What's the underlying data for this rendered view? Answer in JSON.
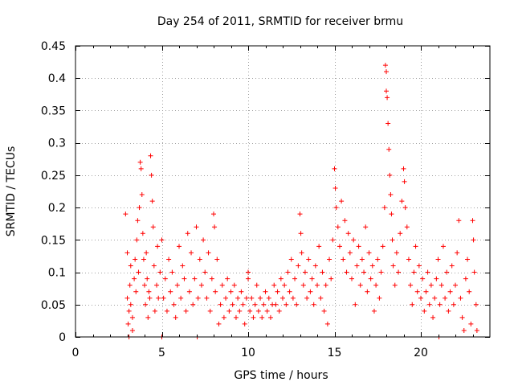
{
  "chart_data": {
    "type": "scatter",
    "title": "Day 254 of 2011, SRMTID for receiver brmu",
    "xlabel": "GPS time / hours",
    "ylabel": "SRMTID / TECUs",
    "xlim": [
      0,
      24
    ],
    "ylim": [
      0,
      0.45
    ],
    "grid": true,
    "marker": "+",
    "marker_color": "#ff0000",
    "xticks": [
      0,
      5,
      10,
      15,
      20
    ],
    "xtick_labels": [
      "0",
      "5",
      "10",
      "15",
      "20"
    ],
    "yticks": [
      0,
      0.05,
      0.1,
      0.15,
      0.2,
      0.25,
      0.3,
      0.35,
      0.4,
      0.45
    ],
    "ytick_labels": [
      "0",
      "0.05",
      "0.1",
      "0.15",
      "0.2",
      "0.25",
      "0.3",
      "0.35",
      "0.4",
      "0.45"
    ],
    "series": [
      {
        "name": "SRMTID",
        "points": [
          [
            2.9,
            0.19
          ],
          [
            3.0,
            0.13
          ],
          [
            3.0,
            0.06
          ],
          [
            3.05,
            0.02
          ],
          [
            3.1,
            0.04
          ],
          [
            3.1,
            0.0
          ],
          [
            3.15,
            0.08
          ],
          [
            3.2,
            0.05
          ],
          [
            3.2,
            0.11
          ],
          [
            3.3,
            0.03
          ],
          [
            3.3,
            0.01
          ],
          [
            3.4,
            0.09
          ],
          [
            3.45,
            0.12
          ],
          [
            3.5,
            0.07
          ],
          [
            3.55,
            0.15
          ],
          [
            3.6,
            0.18
          ],
          [
            3.65,
            0.1
          ],
          [
            3.7,
            0.2
          ],
          [
            3.75,
            0.27
          ],
          [
            3.8,
            0.26
          ],
          [
            3.85,
            0.22
          ],
          [
            3.9,
            0.16
          ],
          [
            3.95,
            0.12
          ],
          [
            4.0,
            0.08
          ],
          [
            4.05,
            0.05
          ],
          [
            4.1,
            0.13
          ],
          [
            4.15,
            0.09
          ],
          [
            4.2,
            0.03
          ],
          [
            4.25,
            0.07
          ],
          [
            4.3,
            0.06
          ],
          [
            4.35,
            0.28
          ],
          [
            4.4,
            0.25
          ],
          [
            4.45,
            0.21
          ],
          [
            4.5,
            0.17
          ],
          [
            4.55,
            0.11
          ],
          [
            4.6,
            0.04
          ],
          [
            4.7,
            0.08
          ],
          [
            4.75,
            0.14
          ],
          [
            4.8,
            0.06
          ],
          [
            4.9,
            0.1
          ],
          [
            5.0,
            0.15
          ],
          [
            5.0,
            0.0
          ],
          [
            5.1,
            0.06
          ],
          [
            5.2,
            0.09
          ],
          [
            5.3,
            0.04
          ],
          [
            5.4,
            0.12
          ],
          [
            5.5,
            0.07
          ],
          [
            5.6,
            0.1
          ],
          [
            5.7,
            0.05
          ],
          [
            5.8,
            0.03
          ],
          [
            5.9,
            0.08
          ],
          [
            6.0,
            0.14
          ],
          [
            6.1,
            0.06
          ],
          [
            6.2,
            0.11
          ],
          [
            6.3,
            0.09
          ],
          [
            6.4,
            0.04
          ],
          [
            6.5,
            0.16
          ],
          [
            6.6,
            0.07
          ],
          [
            6.7,
            0.13
          ],
          [
            6.8,
            0.05
          ],
          [
            6.9,
            0.09
          ],
          [
            7.0,
            0.17
          ],
          [
            7.05,
            0.0
          ],
          [
            7.1,
            0.06
          ],
          [
            7.2,
            0.12
          ],
          [
            7.3,
            0.08
          ],
          [
            7.4,
            0.15
          ],
          [
            7.5,
            0.1
          ],
          [
            7.6,
            0.06
          ],
          [
            7.7,
            0.13
          ],
          [
            7.8,
            0.04
          ],
          [
            7.9,
            0.09
          ],
          [
            8.0,
            0.19
          ],
          [
            8.05,
            0.17
          ],
          [
            8.1,
            0.07
          ],
          [
            8.2,
            0.12
          ],
          [
            8.3,
            0.02
          ],
          [
            8.4,
            0.05
          ],
          [
            8.5,
            0.08
          ],
          [
            8.6,
            0.03
          ],
          [
            8.7,
            0.06
          ],
          [
            8.8,
            0.09
          ],
          [
            8.9,
            0.04
          ],
          [
            9.0,
            0.07
          ],
          [
            9.1,
            0.05
          ],
          [
            9.2,
            0.08
          ],
          [
            9.3,
            0.03
          ],
          [
            9.4,
            0.06
          ],
          [
            9.5,
            0.04
          ],
          [
            9.6,
            0.07
          ],
          [
            9.7,
            0.05
          ],
          [
            9.8,
            0.02
          ],
          [
            9.9,
            0.06
          ],
          [
            10.0,
            0.09
          ],
          [
            10.0,
            0.1
          ],
          [
            10.1,
            0.04
          ],
          [
            10.2,
            0.06
          ],
          [
            10.3,
            0.03
          ],
          [
            10.4,
            0.05
          ],
          [
            10.5,
            0.08
          ],
          [
            10.6,
            0.04
          ],
          [
            10.7,
            0.06
          ],
          [
            10.8,
            0.03
          ],
          [
            10.9,
            0.05
          ],
          [
            11.0,
            0.07
          ],
          [
            11.1,
            0.04
          ],
          [
            11.2,
            0.06
          ],
          [
            11.3,
            0.03
          ],
          [
            11.4,
            0.05
          ],
          [
            11.5,
            0.08
          ],
          [
            11.6,
            0.05
          ],
          [
            11.7,
            0.07
          ],
          [
            11.8,
            0.04
          ],
          [
            11.9,
            0.09
          ],
          [
            12.0,
            0.06
          ],
          [
            12.1,
            0.08
          ],
          [
            12.2,
            0.05
          ],
          [
            12.3,
            0.1
          ],
          [
            12.4,
            0.07
          ],
          [
            12.5,
            0.12
          ],
          [
            12.6,
            0.06
          ],
          [
            12.7,
            0.09
          ],
          [
            12.8,
            0.05
          ],
          [
            12.9,
            0.11
          ],
          [
            13.0,
            0.19
          ],
          [
            13.05,
            0.16
          ],
          [
            13.1,
            0.13
          ],
          [
            13.2,
            0.08
          ],
          [
            13.3,
            0.1
          ],
          [
            13.4,
            0.06
          ],
          [
            13.5,
            0.12
          ],
          [
            13.6,
            0.07
          ],
          [
            13.7,
            0.09
          ],
          [
            13.8,
            0.05
          ],
          [
            13.9,
            0.11
          ],
          [
            14.0,
            0.08
          ],
          [
            14.1,
            0.14
          ],
          [
            14.2,
            0.06
          ],
          [
            14.3,
            0.1
          ],
          [
            14.4,
            0.04
          ],
          [
            14.5,
            0.08
          ],
          [
            14.6,
            0.02
          ],
          [
            14.7,
            0.12
          ],
          [
            14.8,
            0.09
          ],
          [
            14.9,
            0.15
          ],
          [
            15.0,
            0.26
          ],
          [
            15.05,
            0.23
          ],
          [
            15.1,
            0.2
          ],
          [
            15.2,
            0.17
          ],
          [
            15.3,
            0.14
          ],
          [
            15.4,
            0.21
          ],
          [
            15.5,
            0.12
          ],
          [
            15.6,
            0.18
          ],
          [
            15.7,
            0.1
          ],
          [
            15.8,
            0.16
          ],
          [
            15.9,
            0.13
          ],
          [
            16.0,
            0.09
          ],
          [
            16.1,
            0.15
          ],
          [
            16.2,
            0.05
          ],
          [
            16.3,
            0.11
          ],
          [
            16.4,
            0.14
          ],
          [
            16.5,
            0.08
          ],
          [
            16.6,
            0.12
          ],
          [
            16.7,
            0.1
          ],
          [
            16.8,
            0.17
          ],
          [
            16.9,
            0.07
          ],
          [
            17.0,
            0.13
          ],
          [
            17.1,
            0.09
          ],
          [
            17.2,
            0.11
          ],
          [
            17.3,
            0.04
          ],
          [
            17.4,
            0.08
          ],
          [
            17.5,
            0.12
          ],
          [
            17.6,
            0.06
          ],
          [
            17.7,
            0.1
          ],
          [
            17.8,
            0.14
          ],
          [
            17.9,
            0.2
          ],
          [
            17.95,
            0.42
          ],
          [
            18.0,
            0.41
          ],
          [
            18.0,
            0.38
          ],
          [
            18.05,
            0.37
          ],
          [
            18.1,
            0.33
          ],
          [
            18.15,
            0.29
          ],
          [
            18.2,
            0.25
          ],
          [
            18.25,
            0.22
          ],
          [
            18.3,
            0.19
          ],
          [
            18.35,
            0.15
          ],
          [
            18.4,
            0.11
          ],
          [
            18.5,
            0.08
          ],
          [
            18.6,
            0.13
          ],
          [
            18.7,
            0.1
          ],
          [
            18.8,
            0.16
          ],
          [
            18.9,
            0.21
          ],
          [
            19.0,
            0.26
          ],
          [
            19.05,
            0.24
          ],
          [
            19.1,
            0.2
          ],
          [
            19.2,
            0.17
          ],
          [
            19.3,
            0.12
          ],
          [
            19.4,
            0.08
          ],
          [
            19.5,
            0.05
          ],
          [
            19.6,
            0.1
          ],
          [
            19.7,
            0.14
          ],
          [
            19.8,
            0.07
          ],
          [
            19.9,
            0.11
          ],
          [
            20.0,
            0.06
          ],
          [
            20.1,
            0.09
          ],
          [
            20.2,
            0.04
          ],
          [
            20.3,
            0.07
          ],
          [
            20.4,
            0.1
          ],
          [
            20.5,
            0.05
          ],
          [
            20.6,
            0.08
          ],
          [
            20.7,
            0.03
          ],
          [
            20.8,
            0.06
          ],
          [
            20.9,
            0.09
          ],
          [
            21.0,
            0.12
          ],
          [
            21.05,
            0.0
          ],
          [
            21.1,
            0.05
          ],
          [
            21.2,
            0.08
          ],
          [
            21.3,
            0.14
          ],
          [
            21.4,
            0.06
          ],
          [
            21.5,
            0.1
          ],
          [
            21.6,
            0.04
          ],
          [
            21.7,
            0.07
          ],
          [
            21.8,
            0.11
          ],
          [
            21.9,
            0.05
          ],
          [
            22.0,
            0.08
          ],
          [
            22.1,
            0.13
          ],
          [
            22.2,
            0.18
          ],
          [
            22.3,
            0.06
          ],
          [
            22.4,
            0.03
          ],
          [
            22.5,
            0.01
          ],
          [
            22.6,
            0.09
          ],
          [
            22.7,
            0.12
          ],
          [
            22.8,
            0.07
          ],
          [
            22.9,
            0.02
          ],
          [
            23.0,
            0.18
          ],
          [
            23.05,
            0.15
          ],
          [
            23.1,
            0.1
          ],
          [
            23.2,
            0.05
          ],
          [
            23.25,
            0.01
          ]
        ]
      }
    ]
  }
}
